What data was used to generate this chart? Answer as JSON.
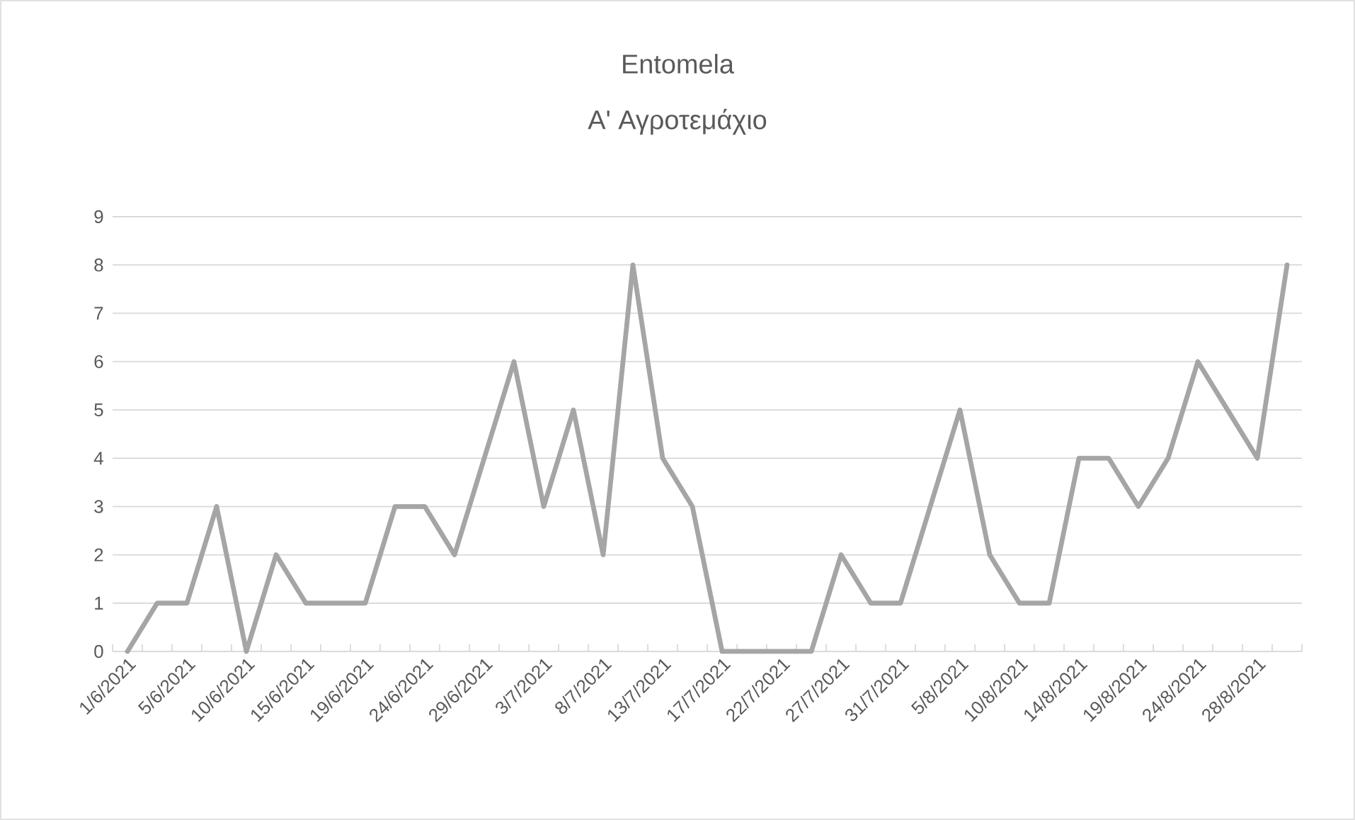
{
  "chart_data": {
    "type": "line",
    "title": "Entomela",
    "subtitle": "Α' Αγροτεμάχιο",
    "categories": [
      "1/6/2021",
      null,
      "5/6/2021",
      null,
      "10/6/2021",
      null,
      "15/6/2021",
      null,
      "19/6/2021",
      null,
      "24/6/2021",
      null,
      "29/6/2021",
      null,
      "3/7/2021",
      null,
      "8/7/2021",
      null,
      "13/7/2021",
      null,
      "17/7/2021",
      null,
      "22/7/2021",
      null,
      "27/7/2021",
      null,
      "31/7/2021",
      null,
      "5/8/2021",
      null,
      "10/8/2021",
      null,
      "14/8/2021",
      null,
      "19/8/2021",
      null,
      "24/8/2021",
      null,
      "28/8/2021",
      null
    ],
    "series": [
      {
        "color": "#a5a5a5",
        "values": [
          0,
          1,
          1,
          3,
          0,
          2,
          1,
          1,
          1,
          3,
          3,
          2,
          4,
          6,
          3,
          5,
          2,
          8,
          4,
          3,
          0,
          0,
          0,
          0,
          2,
          1,
          1,
          3,
          5,
          2,
          1,
          1,
          4,
          4,
          3,
          4,
          6,
          5,
          4,
          8
        ]
      }
    ],
    "ylim": [
      0,
      9
    ],
    "yticks": [
      0,
      1,
      2,
      3,
      4,
      5,
      6,
      7,
      8,
      9
    ],
    "grid": "y",
    "line_style": "solid"
  }
}
